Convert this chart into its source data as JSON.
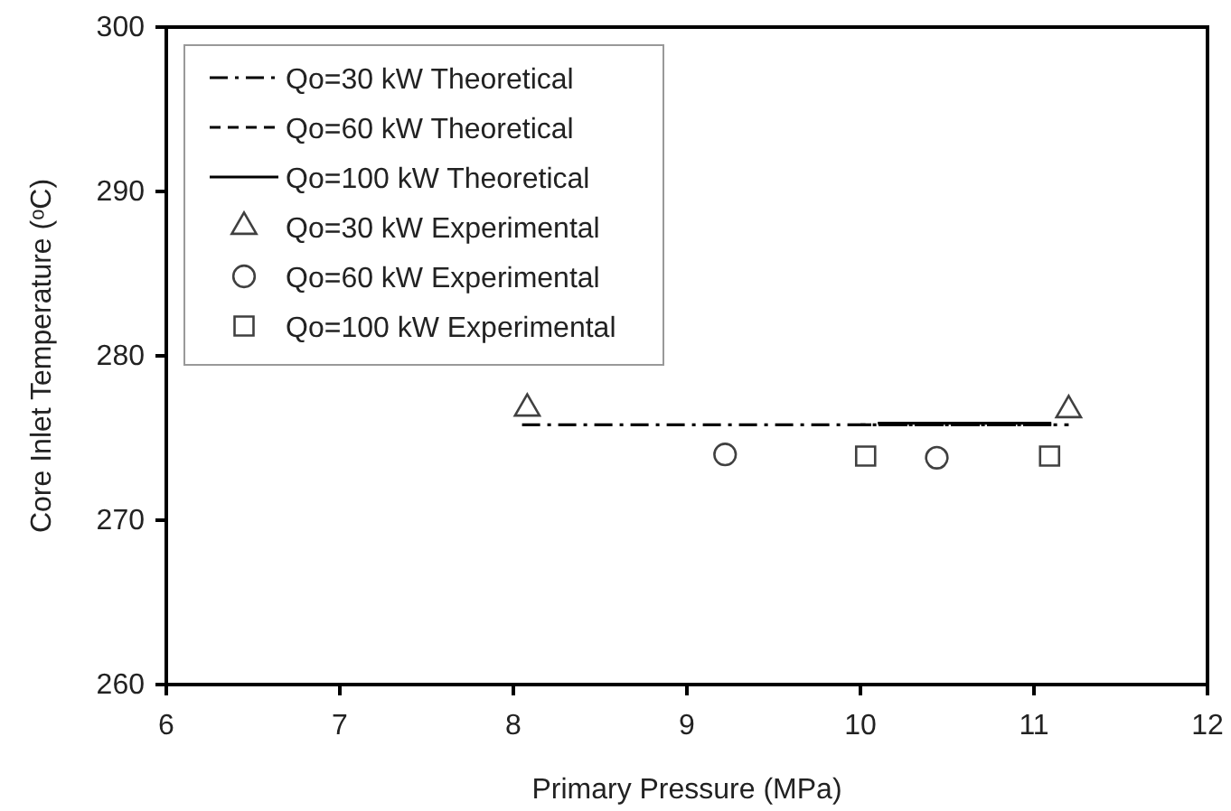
{
  "chart_data": {
    "type": "line",
    "xlabel": "Primary Pressure (MPa)",
    "ylabel": "Core Inlet Temperature (ᵒC)",
    "xlim": [
      6,
      12
    ],
    "xticks": [
      6,
      7,
      8,
      9,
      10,
      11,
      12
    ],
    "ylim": [
      260,
      300
    ],
    "yticks": [
      260,
      270,
      280,
      290,
      300
    ],
    "grid": false,
    "legend": "top left",
    "series": [
      {
        "name": "Qo=30 kW Theoretical",
        "line_style": "dashdot",
        "marker": "none",
        "color": "#000000",
        "x": [
          8.05,
          11.2
        ],
        "values": [
          275.8,
          275.8
        ]
      },
      {
        "name": "Qo=60 kW Theoretical",
        "line_style": "dashed",
        "marker": "none",
        "color": "#000000",
        "x": [
          10.0,
          11.1
        ],
        "values": [
          275.8,
          275.8
        ]
      },
      {
        "name": "Qo=100 kW Theoretical",
        "line_style": "solid",
        "marker": "none",
        "color": "#000000",
        "x": [
          10.1,
          11.1
        ],
        "values": [
          275.9,
          275.9
        ]
      },
      {
        "name": "Qo=30 kW Experimental",
        "type": "scatter",
        "marker": "triangle",
        "color": "#404040",
        "x": [
          8.08,
          11.2
        ],
        "values": [
          276.8,
          276.7
        ]
      },
      {
        "name": "Qo=60 kW Experimental",
        "type": "scatter",
        "marker": "circle",
        "color": "#404040",
        "x": [
          9.22,
          10.44
        ],
        "values": [
          274.0,
          273.8
        ]
      },
      {
        "name": "Qo=100 kW Experimental",
        "type": "scatter",
        "marker": "square",
        "color": "#404040",
        "x": [
          10.03,
          11.09
        ],
        "values": [
          273.9,
          273.9
        ]
      }
    ]
  }
}
